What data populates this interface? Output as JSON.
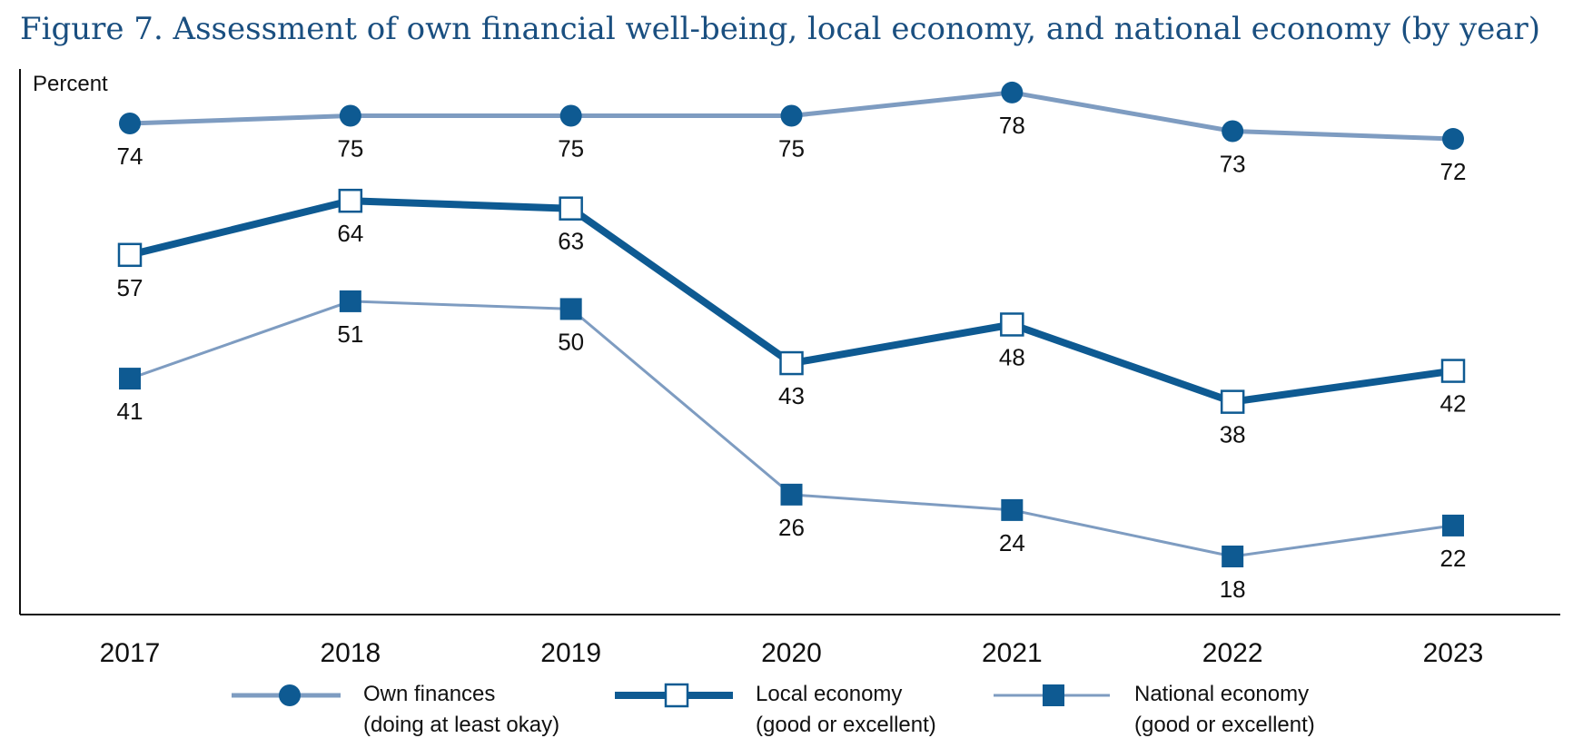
{
  "title": "Figure 7. Assessment of own financial well-being, local economy, and national economy (by year)",
  "colors": {
    "light": "#7e9cc1",
    "dark": "#0e5a92",
    "title": "#1a4f80"
  },
  "legend": [
    {
      "line1": "Own finances",
      "line2": "(doing at least okay)"
    },
    {
      "line1": "Local economy",
      "line2": "(good or excellent)"
    },
    {
      "line1": "National economy",
      "line2": "(good or excellent)"
    }
  ],
  "chart_data": {
    "type": "line",
    "ylabel": "Percent",
    "xlabel": "",
    "x": [
      "2017",
      "2018",
      "2019",
      "2020",
      "2021",
      "2022",
      "2023"
    ],
    "ylim": [
      0,
      80
    ],
    "grid": false,
    "legend_position": "bottom",
    "series": [
      {
        "name": "Own finances (doing at least okay)",
        "marker": "filled-circle",
        "color": "#7e9cc1",
        "values": [
          74,
          75,
          75,
          75,
          78,
          73,
          72
        ]
      },
      {
        "name": "Local economy (good or excellent)",
        "marker": "open-square",
        "color": "#0e5a92",
        "values": [
          57,
          64,
          63,
          43,
          48,
          38,
          42
        ]
      },
      {
        "name": "National economy (good or excellent)",
        "marker": "filled-square",
        "color": "#7e9cc1",
        "values": [
          41,
          51,
          50,
          26,
          24,
          18,
          22
        ]
      }
    ]
  }
}
